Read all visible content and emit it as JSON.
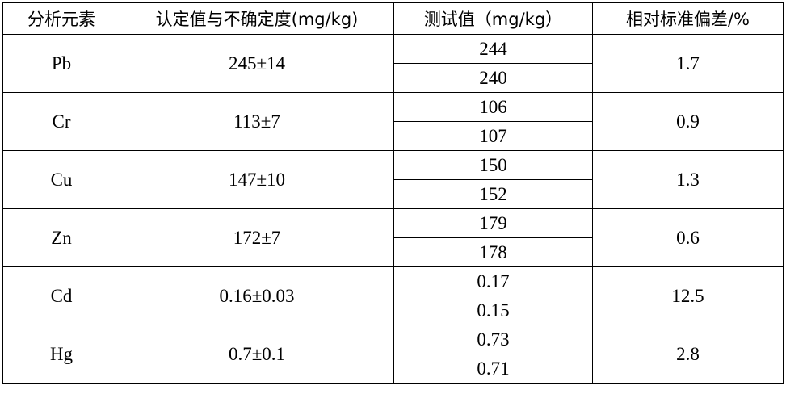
{
  "table": {
    "headers": [
      "分析元素",
      "认定值与不确定度(mg/kg)",
      "测试值（mg/kg）",
      "相对标准偏差/%"
    ],
    "rows": [
      {
        "element": "Pb",
        "certified": "245±14",
        "measured": [
          "244",
          "240"
        ],
        "rsd": "1.7"
      },
      {
        "element": "Cr",
        "certified": "113±7",
        "measured": [
          "106",
          "107"
        ],
        "rsd": "0.9"
      },
      {
        "element": "Cu",
        "certified": "147±10",
        "measured": [
          "150",
          "152"
        ],
        "rsd": "1.3"
      },
      {
        "element": "Zn",
        "certified": "172±7",
        "measured": [
          "179",
          "178"
        ],
        "rsd": "0.6"
      },
      {
        "element": "Cd",
        "certified": "0.16±0.03",
        "measured": [
          "0.17",
          "0.15"
        ],
        "rsd": "12.5"
      },
      {
        "element": "Hg",
        "certified": "0.7±0.1",
        "measured": [
          "0.73",
          "0.71"
        ],
        "rsd": "2.8"
      }
    ]
  }
}
